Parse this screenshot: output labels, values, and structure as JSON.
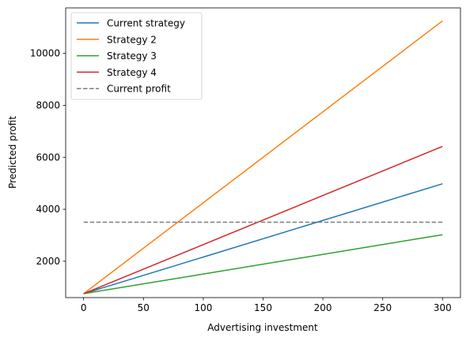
{
  "chart_data": {
    "type": "line",
    "xlabel": "Advertising investment",
    "ylabel": "Predicted profit",
    "xlim": [
      -15,
      315
    ],
    "ylim": [
      600,
      11750
    ],
    "xticks": [
      0,
      50,
      100,
      150,
      200,
      250,
      300
    ],
    "yticks": [
      2000,
      4000,
      6000,
      8000,
      10000
    ],
    "grid": false,
    "legend_position": "upper left",
    "series": [
      {
        "name": "Current strategy",
        "color": "#1f77b4",
        "dash": "solid",
        "x": [
          0,
          300
        ],
        "y": [
          750,
          4980
        ]
      },
      {
        "name": "Strategy 2",
        "color": "#ff7f0e",
        "dash": "solid",
        "x": [
          0,
          300
        ],
        "y": [
          750,
          11250
        ]
      },
      {
        "name": "Strategy 3",
        "color": "#2ca02c",
        "dash": "solid",
        "x": [
          0,
          300
        ],
        "y": [
          750,
          3020
        ]
      },
      {
        "name": "Strategy 4",
        "color": "#d62728",
        "dash": "solid",
        "x": [
          0,
          300
        ],
        "y": [
          750,
          6420
        ]
      },
      {
        "name": "Current profit",
        "color": "#7f7f7f",
        "dash": "dashed",
        "x": [
          0,
          300
        ],
        "y": [
          3500,
          3500
        ]
      }
    ]
  }
}
